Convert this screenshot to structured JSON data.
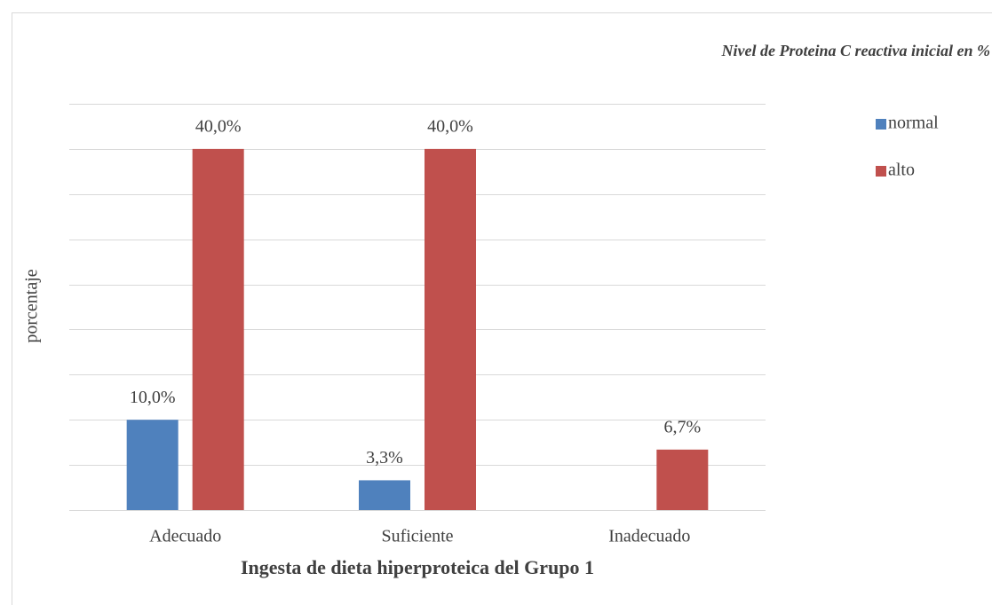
{
  "chart_data": {
    "type": "bar",
    "legend_title": "Nivel de Proteina C reactiva inicial en %",
    "x_label": "Ingesta de dieta hiperproteica del Grupo 1",
    "y_label": "porcentaje",
    "categories": [
      "Adecuado",
      "Suficiente",
      "Inadecuado"
    ],
    "series": [
      {
        "name": "normal",
        "color": "#4f81bd",
        "values": [
          10.0,
          3.3,
          0
        ],
        "value_labels": [
          "10,0%",
          "3,3%",
          null
        ]
      },
      {
        "name": "alto",
        "color": "#c0504d",
        "values": [
          40.0,
          40.0,
          6.7
        ],
        "value_labels": [
          "40,0%",
          "40,0%",
          "6,7%"
        ]
      }
    ],
    "ylim": [
      0,
      45
    ],
    "yticks": [
      0,
      5,
      10,
      15,
      20,
      25,
      30,
      35,
      40,
      45
    ],
    "grid": true,
    "legend": "right"
  }
}
